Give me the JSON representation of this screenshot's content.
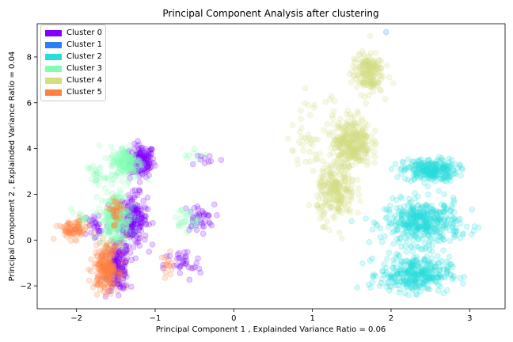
{
  "chart_data": {
    "type": "scatter",
    "title": "Principal Component Analysis after clustering",
    "xlabel": "Principal Component 1 , Explainded Variance Ratio = 0.06",
    "ylabel": "Principal Component 2 , Explainded Variance Ratio = 0.04",
    "xlim": [
      -2.5,
      3.45
    ],
    "ylim": [
      -3.0,
      9.45
    ],
    "xticks": [
      -2,
      -1,
      0,
      1,
      2,
      3
    ],
    "yticks": [
      -2,
      0,
      2,
      4,
      6,
      8
    ],
    "xtick_labels": [
      "−2",
      "−1",
      "0",
      "1",
      "2",
      "3"
    ],
    "ytick_labels": [
      "−2",
      "0",
      "2",
      "4",
      "6",
      "8"
    ],
    "legend_position": "top-left",
    "series": [
      {
        "name": "Cluster 0",
        "color": "#8000ff",
        "clusters": [
          {
            "cx": -1.17,
            "cy": 3.45,
            "sx": 0.08,
            "sy": 0.35,
            "n": 140
          },
          {
            "cx": -1.28,
            "cy": 0.9,
            "sx": 0.09,
            "sy": 0.55,
            "n": 230
          },
          {
            "cx": -1.47,
            "cy": -1.2,
            "sx": 0.07,
            "sy": 0.5,
            "n": 170
          },
          {
            "cx": -0.45,
            "cy": 0.95,
            "sx": 0.1,
            "sy": 0.3,
            "n": 40
          },
          {
            "cx": -0.65,
            "cy": -1.1,
            "sx": 0.12,
            "sy": 0.35,
            "n": 35
          },
          {
            "cx": -1.75,
            "cy": 0.6,
            "sx": 0.08,
            "sy": 0.35,
            "n": 30
          },
          {
            "cx": -0.35,
            "cy": 3.55,
            "sx": 0.12,
            "sy": 0.15,
            "n": 10
          }
        ]
      },
      {
        "name": "Cluster 1",
        "color": "#2c7ef7",
        "clusters": [
          {
            "cx": 1.95,
            "cy": 9.1,
            "sx": 0.01,
            "sy": 0.01,
            "n": 1
          }
        ]
      },
      {
        "name": "Cluster 2",
        "color": "#2adddd",
        "clusters": [
          {
            "cx": 2.5,
            "cy": 3.05,
            "sx": 0.17,
            "sy": 0.25,
            "n": 260
          },
          {
            "cx": 2.4,
            "cy": 0.75,
            "sx": 0.24,
            "sy": 0.48,
            "n": 420
          },
          {
            "cx": 2.3,
            "cy": -1.5,
            "sx": 0.22,
            "sy": 0.38,
            "n": 330
          }
        ]
      },
      {
        "name": "Cluster 3",
        "color": "#80ffb4",
        "clusters": [
          {
            "cx": -1.37,
            "cy": 3.4,
            "sx": 0.1,
            "sy": 0.35,
            "n": 160
          },
          {
            "cx": -1.5,
            "cy": 0.95,
            "sx": 0.1,
            "sy": 0.6,
            "n": 230
          },
          {
            "cx": -1.75,
            "cy": 2.85,
            "sx": 0.06,
            "sy": 0.25,
            "n": 25
          },
          {
            "cx": -0.62,
            "cy": 0.9,
            "sx": 0.08,
            "sy": 0.25,
            "n": 30
          },
          {
            "cx": -1.95,
            "cy": 0.95,
            "sx": 0.06,
            "sy": 0.12,
            "n": 15
          },
          {
            "cx": -0.45,
            "cy": 3.7,
            "sx": 0.08,
            "sy": 0.12,
            "n": 8
          }
        ]
      },
      {
        "name": "Cluster 4",
        "color": "#d4dd80",
        "clusters": [
          {
            "cx": 1.7,
            "cy": 7.3,
            "sx": 0.1,
            "sy": 0.45,
            "n": 180
          },
          {
            "cx": 1.5,
            "cy": 4.3,
            "sx": 0.12,
            "sy": 0.55,
            "n": 320
          },
          {
            "cx": 1.3,
            "cy": 2.1,
            "sx": 0.12,
            "sy": 0.65,
            "n": 230
          },
          {
            "cx": 0.9,
            "cy": 4.0,
            "sx": 0.12,
            "sy": 0.5,
            "n": 30
          },
          {
            "cx": 1.05,
            "cy": 5.8,
            "sx": 0.2,
            "sy": 0.5,
            "n": 12
          }
        ]
      },
      {
        "name": "Cluster 5",
        "color": "#ff8040",
        "clusters": [
          {
            "cx": -1.62,
            "cy": -1.2,
            "sx": 0.08,
            "sy": 0.5,
            "n": 230
          },
          {
            "cx": -2.05,
            "cy": 0.45,
            "sx": 0.1,
            "sy": 0.2,
            "n": 80
          },
          {
            "cx": -1.5,
            "cy": 1.25,
            "sx": 0.05,
            "sy": 0.35,
            "n": 40
          },
          {
            "cx": -0.85,
            "cy": -1.2,
            "sx": 0.04,
            "sy": 0.3,
            "n": 15
          }
        ]
      }
    ]
  }
}
